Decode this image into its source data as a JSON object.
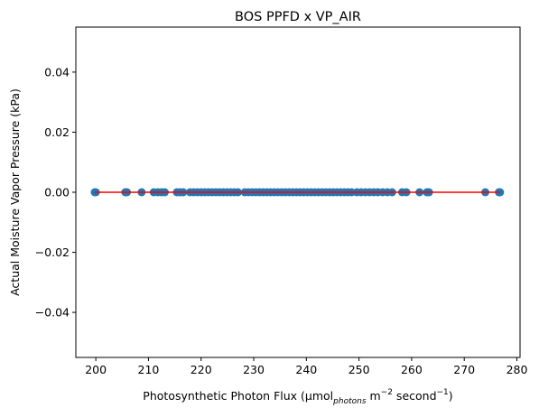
{
  "chart_data": {
    "type": "scatter",
    "title": "BOS PPFD x VP_AIR",
    "xlabel": {
      "prefix": "Photosynthetic Photon Flux (μmol",
      "sub": "photons",
      "mid": " m",
      "sup1": "−2",
      "mid2": " second",
      "sup2": "−1",
      "suffix": ")"
    },
    "ylabel": "Actual Moisture Vapor Pressure (kPa)",
    "xlim": [
      196.2,
      280.6
    ],
    "ylim": [
      -0.055,
      0.055
    ],
    "xticks": [
      200,
      210,
      220,
      230,
      240,
      250,
      260,
      270,
      280
    ],
    "yticks": [
      -0.04,
      -0.02,
      0.0,
      0.02,
      0.04
    ],
    "ytick_labels": [
      "−0.04",
      "−0.02",
      "0.00",
      "0.02",
      "0.04"
    ],
    "point_color": "#1f77b4",
    "line_color": "#ff0000",
    "fit_line": {
      "x": [
        199.8,
        276.8
      ],
      "y": [
        0.0,
        0.0
      ]
    },
    "x": [
      199.8,
      200.0,
      205.6,
      205.9,
      208.7,
      211.0,
      211.8,
      212.5,
      213.1,
      215.4,
      216.0,
      216.6,
      217.9,
      218.6,
      219.3,
      220.0,
      220.7,
      221.4,
      222.1,
      222.8,
      223.5,
      224.2,
      224.9,
      225.6,
      226.3,
      227.0,
      228.3,
      229.0,
      229.7,
      230.4,
      231.1,
      231.8,
      232.5,
      233.2,
      233.9,
      234.6,
      235.3,
      236.0,
      236.7,
      237.4,
      238.1,
      238.8,
      239.5,
      240.2,
      240.9,
      241.6,
      242.3,
      243.0,
      243.7,
      244.4,
      245.1,
      245.8,
      246.5,
      247.2,
      247.9,
      248.6,
      249.6,
      250.4,
      251.2,
      252.0,
      252.8,
      253.6,
      254.5,
      255.4,
      256.3,
      258.2,
      259.0,
      261.5,
      262.9,
      263.3,
      274.0,
      276.6,
      276.8
    ],
    "y": [
      0,
      0,
      0,
      0,
      0,
      0,
      0,
      0,
      0,
      0,
      0,
      0,
      0,
      0,
      0,
      0,
      0,
      0,
      0,
      0,
      0,
      0,
      0,
      0,
      0,
      0,
      0,
      0,
      0,
      0,
      0,
      0,
      0,
      0,
      0,
      0,
      0,
      0,
      0,
      0,
      0,
      0,
      0,
      0,
      0,
      0,
      0,
      0,
      0,
      0,
      0,
      0,
      0,
      0,
      0,
      0,
      0,
      0,
      0,
      0,
      0,
      0,
      0,
      0,
      0,
      0,
      0,
      0,
      0,
      0,
      0,
      0,
      0
    ],
    "grid": false,
    "legend": "none"
  }
}
